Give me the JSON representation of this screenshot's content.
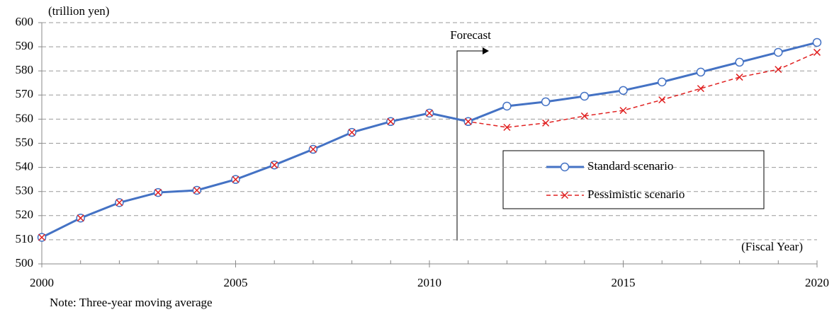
{
  "chart_data": {
    "type": "line",
    "y_label": "(trillion yen)",
    "x_label": "(Fiscal Year)",
    "annotation": "Forecast",
    "note": "Note: Three-year moving average",
    "x": [
      2000,
      2001,
      2002,
      2003,
      2004,
      2005,
      2006,
      2007,
      2008,
      2009,
      2010,
      2011,
      2012,
      2013,
      2014,
      2015,
      2016,
      2017,
      2018,
      2019,
      2020
    ],
    "series": [
      {
        "name": "Standard scenario",
        "color": "#4472c4",
        "values": [
          511,
          519,
          525.4,
          529.6,
          530.5,
          535,
          541,
          547.5,
          554.5,
          559,
          562.5,
          559,
          565.4,
          567.2,
          569.5,
          571.9,
          575.4,
          579.5,
          583.6,
          587.7,
          591.8
        ]
      },
      {
        "name": "Pessimistic scenario",
        "color": "#e02020",
        "values": [
          511,
          519,
          525.4,
          529.6,
          530.5,
          535,
          541,
          547.5,
          554.5,
          559,
          562.5,
          559,
          556.6,
          558.4,
          561.3,
          563.6,
          568,
          572.7,
          577.4,
          580.6,
          587.7
        ]
      }
    ],
    "xlim": [
      2000,
      2020
    ],
    "xticks": [
      2000,
      2005,
      2010,
      2015,
      2020
    ],
    "ylim": [
      500,
      600
    ],
    "yticks": [
      500,
      510,
      520,
      530,
      540,
      550,
      560,
      570,
      580,
      590,
      600
    ],
    "grid": true
  }
}
